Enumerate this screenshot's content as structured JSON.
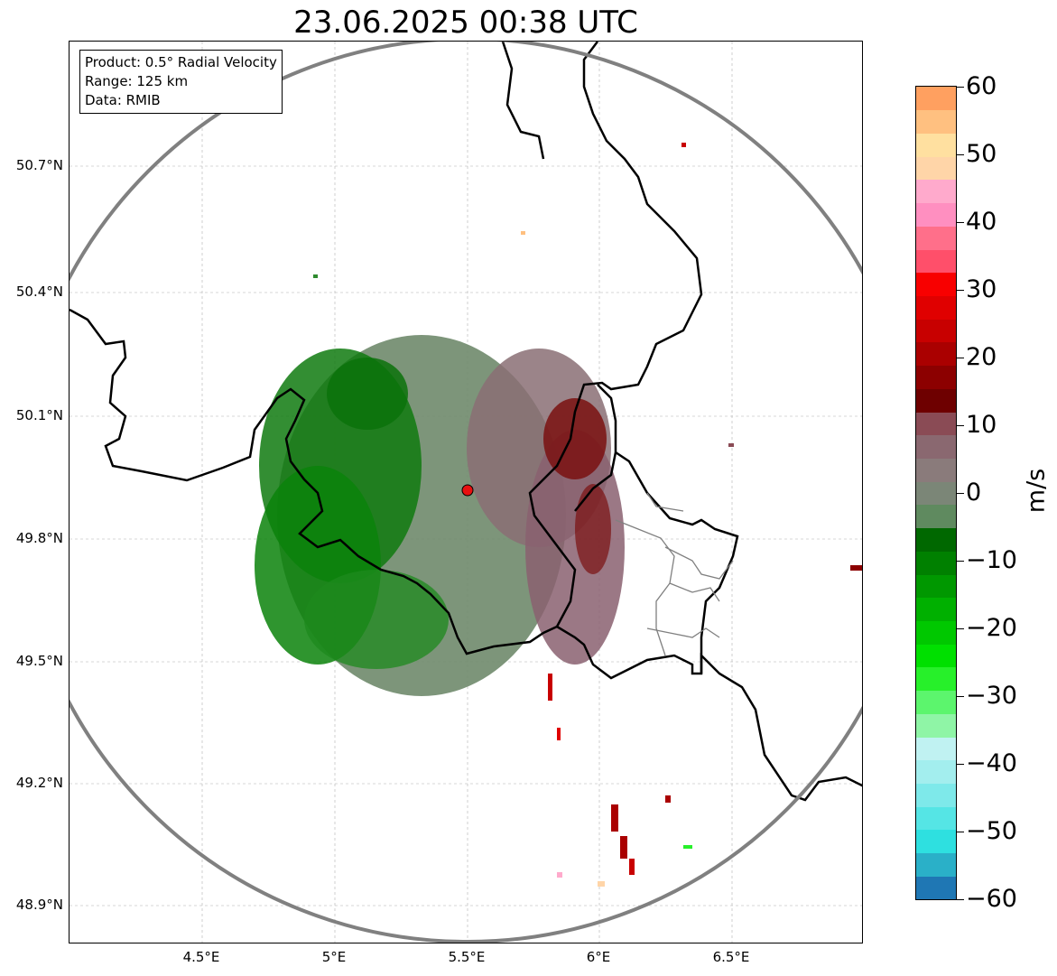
{
  "title": "23.06.2025 00:38 UTC",
  "info_box": {
    "product": "Product: 0.5° Radial Velocity",
    "range": "Range: 125 km",
    "data": "Data: RMIB"
  },
  "map": {
    "lat_labels": [
      "50.7°N",
      "50.4°N",
      "50.1°N",
      "49.8°N",
      "49.5°N",
      "49.2°N",
      "48.9°N"
    ],
    "lon_labels": [
      "4.5°E",
      "5°E",
      "5.5°E",
      "6°E",
      "6.5°E"
    ],
    "radar_site": "red-dot-icon",
    "range_ring_color": "#808080",
    "border_color": "#000000",
    "subregion_border_color": "#808080"
  },
  "colorbar": {
    "unit": "m/s",
    "ticks": [
      "60",
      "50",
      "40",
      "30",
      "20",
      "10",
      "0",
      "−10",
      "−20",
      "−30",
      "−40",
      "−50",
      "−60"
    ],
    "min": -60,
    "max": 60,
    "colors_bottom_to_top": [
      "#1f77b4",
      "#2ab0c8",
      "#2ee0e0",
      "#55e5e5",
      "#7ee9ea",
      "#a3eeee",
      "#c0f2f2",
      "#8ff5a6",
      "#5cf56d",
      "#27f02a",
      "#00e000",
      "#00c800",
      "#00b000",
      "#009800",
      "#008000",
      "#006800",
      "#5f8a5f",
      "#7b8677",
      "#8a7b7b",
      "#8a6870",
      "#8a4b55",
      "#6e0000",
      "#8c0000",
      "#aa0000",
      "#c80000",
      "#e00000",
      "#f80000",
      "#ff4f6a",
      "#ff6f8a",
      "#ff8fc0",
      "#ffaacc",
      "#ffd5a8",
      "#ffe0a0",
      "#ffc080",
      "#ffa060"
    ]
  }
}
